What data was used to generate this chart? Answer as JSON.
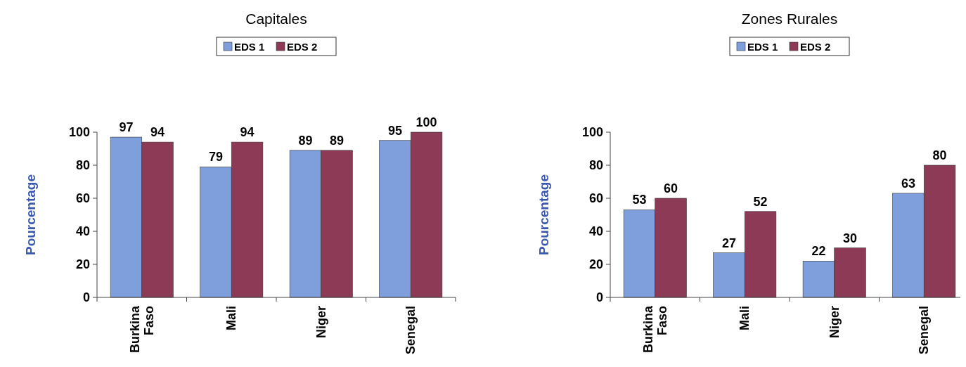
{
  "chart_data": [
    {
      "type": "bar",
      "title": "Capitales",
      "ylabel": "Pourcentage",
      "categories": [
        "Burkina Faso",
        "Mali",
        "Niger",
        "Senegal"
      ],
      "series": [
        {
          "name": "EDS 1",
          "color": "#7f9fdc",
          "values": [
            97,
            79,
            89,
            95
          ]
        },
        {
          "name": "EDS 2",
          "color": "#8c3a55",
          "values": [
            94,
            94,
            89,
            100
          ]
        }
      ],
      "ylim": [
        0,
        100
      ],
      "yticks": [
        0,
        20,
        40,
        60,
        80,
        100
      ],
      "data_labels": true,
      "legend": "top",
      "grid": false
    },
    {
      "type": "bar",
      "title": "Zones Rurales",
      "ylabel": "Pourcentage",
      "categories": [
        "Burkina Faso",
        "Mali",
        "Niger",
        "Senegal"
      ],
      "series": [
        {
          "name": "EDS 1",
          "color": "#7f9fdc",
          "values": [
            53,
            27,
            22,
            63
          ]
        },
        {
          "name": "EDS 2",
          "color": "#8c3a55",
          "values": [
            60,
            52,
            30,
            80
          ]
        }
      ],
      "ylim": [
        0,
        100
      ],
      "yticks": [
        0,
        20,
        40,
        60,
        80,
        100
      ],
      "data_labels": true,
      "legend": "top",
      "grid": false
    }
  ]
}
